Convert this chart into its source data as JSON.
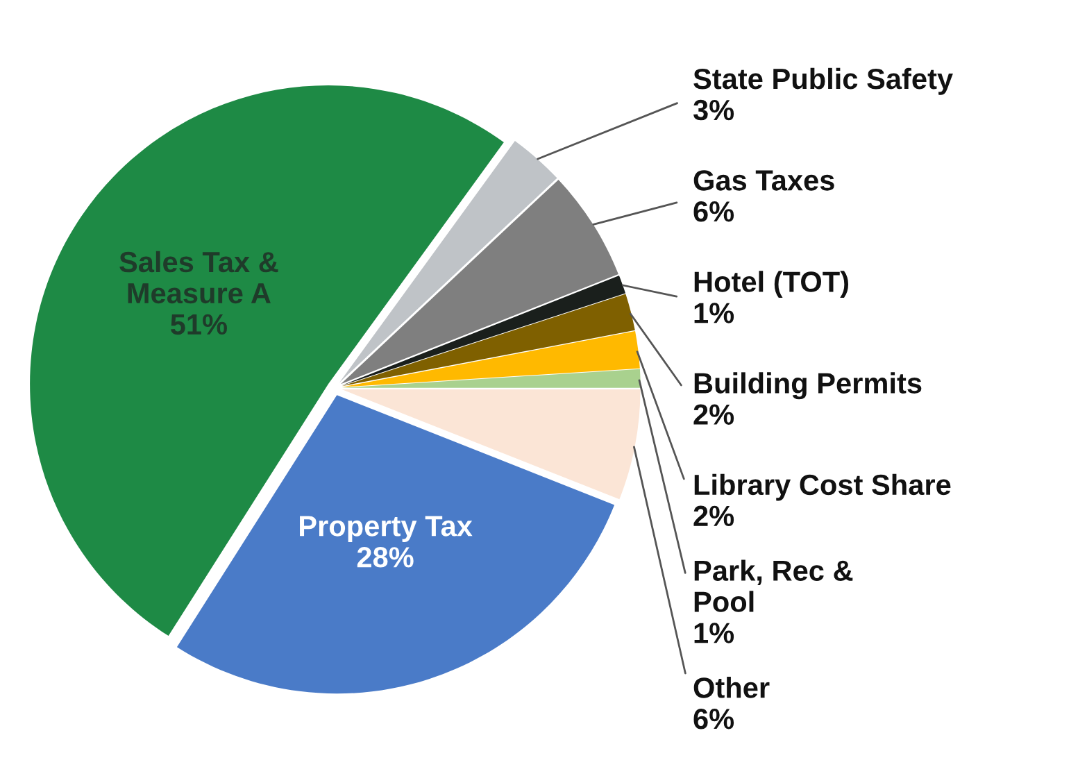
{
  "chart_data": {
    "type": "pie",
    "categories": [
      "State Public Safety",
      "Gas Taxes",
      "Hotel (TOT)",
      "Building Permits",
      "Library Cost Share",
      "Park, Rec &\nPool",
      "Other",
      "Property Tax",
      "Sales Tax &\nMeasure A"
    ],
    "values": [
      3,
      6,
      1,
      2,
      2,
      1,
      6,
      28,
      51
    ],
    "value_labels": [
      "3%",
      "6%",
      "1%",
      "2%",
      "2%",
      "1%",
      "6%",
      "28%",
      "51%"
    ],
    "colors": [
      "#bfc3c7",
      "#7f7f7f",
      "#1a1f1c",
      "#7f6000",
      "#ffb900",
      "#a9d18e",
      "#fbe5d6",
      "#4a7bc8",
      "#1e8a45"
    ],
    "legend": false
  }
}
